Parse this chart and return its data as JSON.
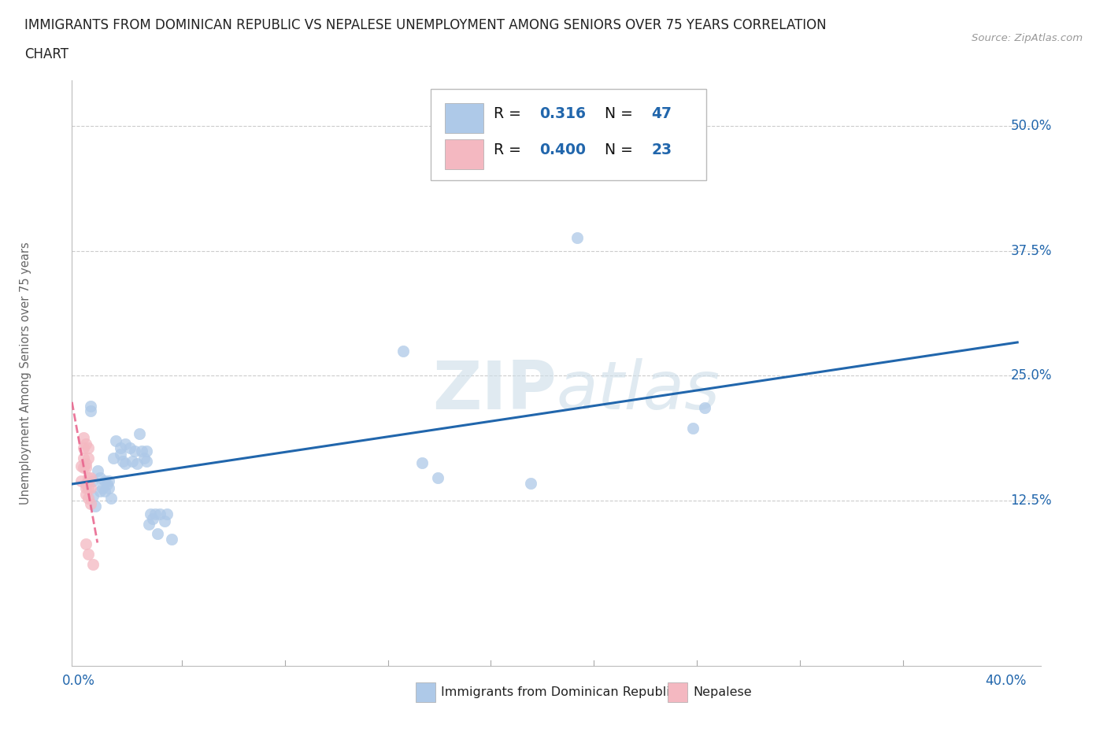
{
  "title_line1": "IMMIGRANTS FROM DOMINICAN REPUBLIC VS NEPALESE UNEMPLOYMENT AMONG SENIORS OVER 75 YEARS CORRELATION",
  "title_line2": "CHART",
  "source": "Source: ZipAtlas.com",
  "ylabel": "Unemployment Among Seniors over 75 years",
  "blue_R": 0.316,
  "blue_N": 47,
  "pink_R": 0.4,
  "pink_N": 23,
  "blue_color": "#aec9e8",
  "pink_color": "#f4b8c1",
  "blue_line_color": "#2166ac",
  "pink_line_color": "#e8608a",
  "watermark_color": "#ccdde8",
  "ytick_vals": [
    0.125,
    0.25,
    0.375,
    0.5
  ],
  "ytick_labels": [
    "12.5%",
    "25.0%",
    "37.5%",
    "50.0%"
  ],
  "xtick_left": "0.0%",
  "xtick_right": "40.0%",
  "xlim": [
    -0.003,
    0.415
  ],
  "ylim": [
    -0.04,
    0.545
  ],
  "blue_scatter": [
    [
      0.005,
      0.22
    ],
    [
      0.005,
      0.215
    ],
    [
      0.006,
      0.145
    ],
    [
      0.006,
      0.13
    ],
    [
      0.007,
      0.12
    ],
    [
      0.008,
      0.155
    ],
    [
      0.009,
      0.148
    ],
    [
      0.009,
      0.135
    ],
    [
      0.01,
      0.138
    ],
    [
      0.011,
      0.145
    ],
    [
      0.011,
      0.135
    ],
    [
      0.012,
      0.142
    ],
    [
      0.013,
      0.145
    ],
    [
      0.013,
      0.138
    ],
    [
      0.014,
      0.128
    ],
    [
      0.015,
      0.168
    ],
    [
      0.016,
      0.185
    ],
    [
      0.018,
      0.178
    ],
    [
      0.018,
      0.172
    ],
    [
      0.019,
      0.165
    ],
    [
      0.02,
      0.182
    ],
    [
      0.02,
      0.162
    ],
    [
      0.022,
      0.178
    ],
    [
      0.023,
      0.165
    ],
    [
      0.024,
      0.175
    ],
    [
      0.025,
      0.162
    ],
    [
      0.026,
      0.192
    ],
    [
      0.027,
      0.175
    ],
    [
      0.028,
      0.168
    ],
    [
      0.029,
      0.165
    ],
    [
      0.029,
      0.175
    ],
    [
      0.03,
      0.102
    ],
    [
      0.031,
      0.112
    ],
    [
      0.032,
      0.107
    ],
    [
      0.033,
      0.112
    ],
    [
      0.034,
      0.092
    ],
    [
      0.035,
      0.112
    ],
    [
      0.037,
      0.105
    ],
    [
      0.038,
      0.112
    ],
    [
      0.04,
      0.087
    ],
    [
      0.14,
      0.275
    ],
    [
      0.148,
      0.163
    ],
    [
      0.155,
      0.148
    ],
    [
      0.195,
      0.143
    ],
    [
      0.215,
      0.388
    ],
    [
      0.265,
      0.198
    ],
    [
      0.27,
      0.218
    ]
  ],
  "pink_scatter": [
    [
      0.001,
      0.16
    ],
    [
      0.001,
      0.145
    ],
    [
      0.002,
      0.188
    ],
    [
      0.002,
      0.178
    ],
    [
      0.002,
      0.168
    ],
    [
      0.002,
      0.158
    ],
    [
      0.003,
      0.182
    ],
    [
      0.003,
      0.162
    ],
    [
      0.003,
      0.158
    ],
    [
      0.003,
      0.142
    ],
    [
      0.003,
      0.138
    ],
    [
      0.003,
      0.132
    ],
    [
      0.003,
      0.082
    ],
    [
      0.004,
      0.178
    ],
    [
      0.004,
      0.168
    ],
    [
      0.004,
      0.148
    ],
    [
      0.004,
      0.138
    ],
    [
      0.004,
      0.128
    ],
    [
      0.004,
      0.072
    ],
    [
      0.005,
      0.148
    ],
    [
      0.005,
      0.138
    ],
    [
      0.005,
      0.122
    ],
    [
      0.006,
      0.062
    ]
  ],
  "background_color": "#ffffff"
}
